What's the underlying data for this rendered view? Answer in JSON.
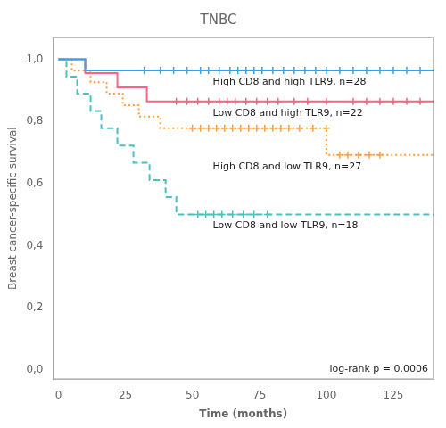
{
  "chart_data": {
    "type": "step",
    "title": "TNBC",
    "xlabel": "Time (months)",
    "ylabel": "Breast cancer-specific survival",
    "annotation": "log-rank p = 0.0006",
    "xlim": [
      -2,
      140
    ],
    "ylim": [
      -0.03,
      1.07
    ],
    "xticks": [
      0,
      25,
      50,
      75,
      100,
      125
    ],
    "yticks": [
      {
        "value": 0.0,
        "label": "0,0"
      },
      {
        "value": 0.2,
        "label": "0,2"
      },
      {
        "value": 0.4,
        "label": "0,4"
      },
      {
        "value": 0.6,
        "label": "0,6"
      },
      {
        "value": 0.8,
        "label": "0,8"
      },
      {
        "value": 1.0,
        "label": "1,0"
      }
    ],
    "grid": false,
    "series": [
      {
        "name": "High CD8 and high TLR9, n=28",
        "line_style": "solid",
        "marker": "plus",
        "x": [
          0,
          10,
          10,
          32,
          32,
          140
        ],
        "values": [
          1.0,
          1.0,
          0.964,
          0.964,
          0.964,
          0.964
        ],
        "censors_x": [
          32,
          38,
          43,
          48,
          53,
          56,
          60,
          64,
          67,
          70,
          73,
          76,
          80,
          84,
          88,
          92,
          96,
          100,
          105,
          110,
          115,
          120,
          125,
          130,
          135
        ],
        "censors_y": [
          0.964,
          0.964,
          0.964,
          0.964,
          0.964,
          0.964,
          0.964,
          0.964,
          0.964,
          0.964,
          0.964,
          0.964,
          0.964,
          0.964,
          0.964,
          0.964,
          0.964,
          0.964,
          0.964,
          0.964,
          0.964,
          0.964,
          0.964,
          0.964,
          0.964
        ]
      },
      {
        "name": "Low CD8 and high TLR9, n=22",
        "line_style": "solid",
        "marker": "plus",
        "x": [
          0,
          10,
          10,
          22,
          22,
          33,
          33,
          42,
          42,
          140
        ],
        "values": [
          1.0,
          1.0,
          0.955,
          0.955,
          0.909,
          0.909,
          0.864,
          0.864,
          0.864,
          0.864
        ],
        "censors_x": [
          44,
          48,
          52,
          56,
          60,
          63,
          66,
          70,
          74,
          78,
          82,
          88,
          93,
          100,
          110,
          115,
          120,
          125,
          130,
          135
        ],
        "censors_y": [
          0.864,
          0.864,
          0.864,
          0.864,
          0.864,
          0.864,
          0.864,
          0.864,
          0.864,
          0.864,
          0.864,
          0.864,
          0.864,
          0.864,
          0.864,
          0.864,
          0.864,
          0.864,
          0.864,
          0.864
        ]
      },
      {
        "name": "High CD8 and low TLR9, n=27",
        "line_style": "dotted",
        "marker": "plus",
        "x": [
          0,
          5,
          5,
          12,
          12,
          18,
          18,
          24,
          24,
          30,
          30,
          38,
          38,
          45,
          45,
          50,
          50,
          100,
          100,
          140
        ],
        "values": [
          1.0,
          1.0,
          0.963,
          0.963,
          0.926,
          0.926,
          0.889,
          0.889,
          0.852,
          0.852,
          0.815,
          0.815,
          0.778,
          0.778,
          0.778,
          0.778,
          0.778,
          0.778,
          0.692,
          0.692
        ],
        "censors_x": [
          50,
          53,
          56,
          59,
          62,
          65,
          68,
          71,
          74,
          77,
          80,
          83,
          86,
          90,
          95,
          100,
          105,
          108,
          112,
          116,
          120
        ],
        "censors_y": [
          0.778,
          0.778,
          0.778,
          0.778,
          0.778,
          0.778,
          0.778,
          0.778,
          0.778,
          0.778,
          0.778,
          0.778,
          0.778,
          0.778,
          0.778,
          0.778,
          0.692,
          0.692,
          0.692,
          0.692,
          0.692
        ]
      },
      {
        "name": "Low CD8 and low TLR9, n=18",
        "line_style": "dashed",
        "marker": "plus",
        "x": [
          0,
          3,
          3,
          7,
          7,
          12,
          12,
          16,
          16,
          22,
          22,
          28,
          28,
          34,
          34,
          40,
          40,
          44,
          44,
          47,
          47,
          50,
          50,
          77,
          77,
          140
        ],
        "values": [
          1.0,
          1.0,
          0.944,
          0.944,
          0.889,
          0.889,
          0.833,
          0.833,
          0.778,
          0.778,
          0.722,
          0.722,
          0.667,
          0.667,
          0.611,
          0.611,
          0.556,
          0.556,
          0.5,
          0.5,
          0.5,
          0.5,
          0.5,
          0.5,
          0.5,
          0.5
        ],
        "censors_x": [
          52,
          55,
          58,
          61,
          65,
          69,
          73,
          78
        ],
        "censors_y": [
          0.5,
          0.5,
          0.5,
          0.5,
          0.5,
          0.5,
          0.5,
          0.5
        ]
      }
    ]
  }
}
